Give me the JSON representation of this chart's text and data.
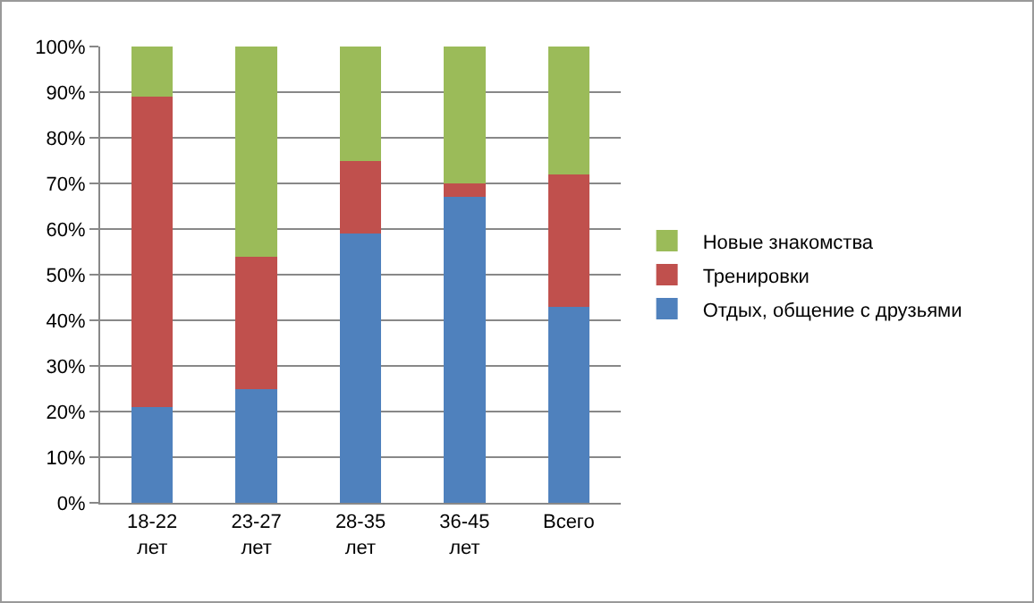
{
  "chart_data": {
    "type": "bar",
    "stacked": true,
    "categories": [
      "18-22 лет",
      "23-27 лет",
      "28-35 лет",
      "36-45 лет",
      "Всего"
    ],
    "series": [
      {
        "name": "Отдых, общение с друзьями",
        "color": "#4f81bd",
        "values": [
          21,
          25,
          59,
          67,
          43
        ]
      },
      {
        "name": "Тренировки",
        "color": "#c0504d",
        "values": [
          68,
          29,
          16,
          3,
          29
        ]
      },
      {
        "name": "Новые знакомства",
        "color": "#9bbb59",
        "values": [
          11,
          46,
          25,
          30,
          28
        ]
      }
    ],
    "ylim": [
      0,
      100
    ],
    "yticks": [
      {
        "value": 0,
        "label": "0%"
      },
      {
        "value": 10,
        "label": "10%"
      },
      {
        "value": 20,
        "label": "20%"
      },
      {
        "value": 30,
        "label": "30%"
      },
      {
        "value": 40,
        "label": "40%"
      },
      {
        "value": 50,
        "label": "50%"
      },
      {
        "value": 60,
        "label": "60%"
      },
      {
        "value": 70,
        "label": "70%"
      },
      {
        "value": 80,
        "label": "80%"
      },
      {
        "value": 90,
        "label": "90%"
      },
      {
        "value": 100,
        "label": "100%"
      }
    ],
    "grid": "y",
    "legend": "right"
  }
}
